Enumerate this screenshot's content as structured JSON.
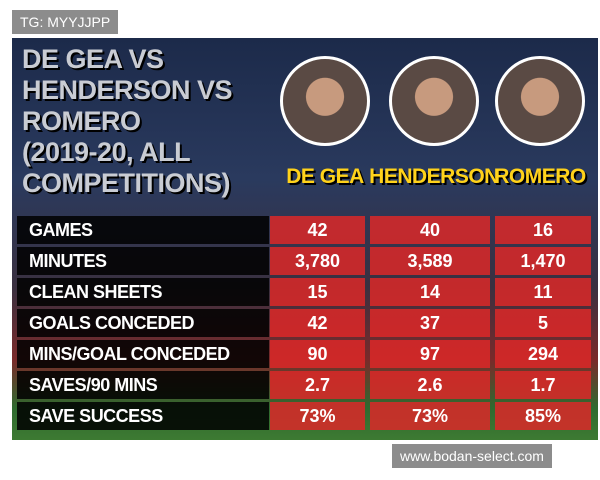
{
  "watermark_top": "TG: MYYJJPP",
  "title_lines": [
    "DE GEA VS",
    "HENDERSON VS",
    "ROMERO",
    "(2019-20, ALL",
    "COMPETITIONS)"
  ],
  "players": [
    "DE GEA",
    "HENDERSON",
    "ROMERO"
  ],
  "table": {
    "rows": [
      [
        "GAMES",
        "42",
        "40",
        "16"
      ],
      [
        "MINUTES",
        "3,780",
        "3,589",
        "1,470"
      ],
      [
        "CLEAN SHEETS",
        "15",
        "14",
        "11"
      ],
      [
        "GOALS CONCEDED",
        "42",
        "37",
        "5"
      ],
      [
        "MINS/GOAL CONCEDED",
        "90",
        "97",
        "294"
      ],
      [
        "SAVES/90 MINS",
        "2.7",
        "2.6",
        "1.7"
      ],
      [
        "SAVE SUCCESS",
        "73%",
        "73%",
        "85%"
      ]
    ]
  },
  "watermark_bottom": "www.bodan-select.com"
}
